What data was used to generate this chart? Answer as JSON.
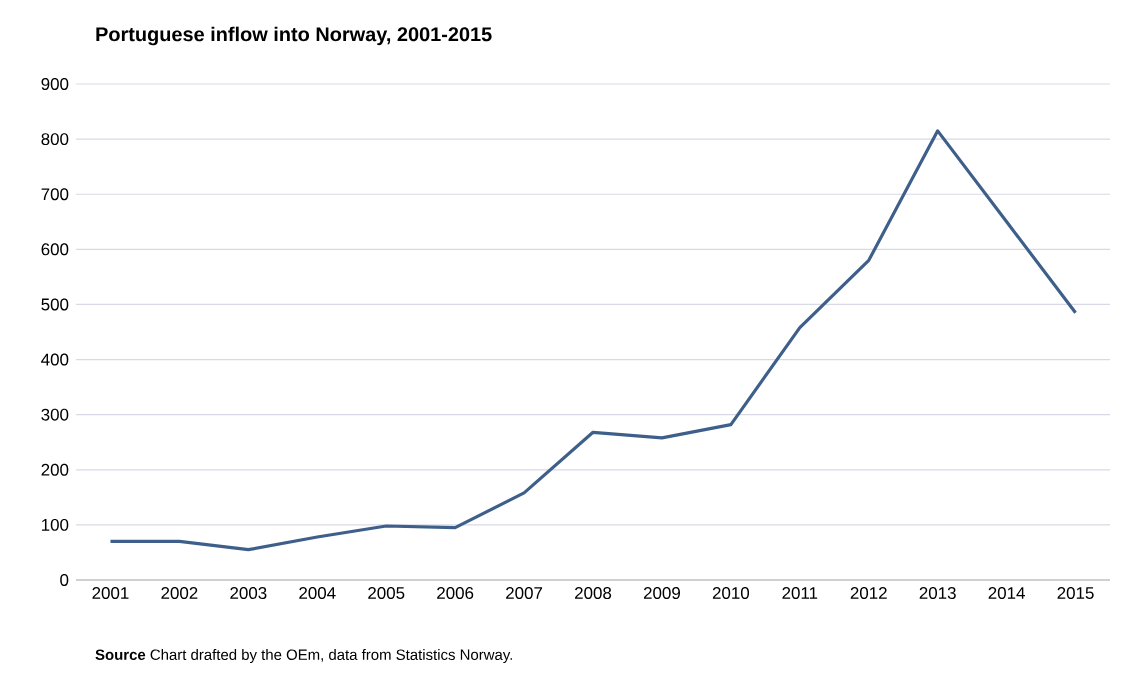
{
  "chart_data": {
    "type": "line",
    "title": "Portuguese  inflow into Norway, 2001-2015",
    "categories": [
      "2001",
      "2002",
      "2003",
      "2004",
      "2005",
      "2006",
      "2007",
      "2008",
      "2009",
      "2010",
      "2011",
      "2012",
      "2013",
      "2014",
      "2015"
    ],
    "values": [
      70,
      70,
      55,
      78,
      98,
      95,
      158,
      268,
      258,
      282,
      458,
      580,
      815,
      650,
      485
    ],
    "color": "#3e5f8a",
    "ylim": [
      0,
      900
    ],
    "yticks": [
      0,
      100,
      200,
      300,
      400,
      500,
      600,
      700,
      800,
      900
    ],
    "grid": "y",
    "marker": "none",
    "line_style": "solid",
    "annotations": [
      "**Source**  Chart drafted by the OEm, data  from Statistics Norway."
    ]
  }
}
